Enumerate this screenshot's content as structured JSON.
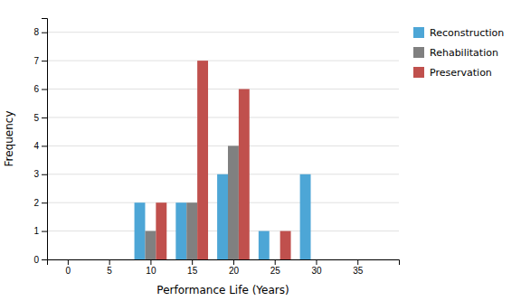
{
  "chart_data": {
    "type": "bar",
    "xlabel": "Performance Life (Years)",
    "ylabel": "Frequency",
    "x": [
      10,
      15,
      20,
      25,
      30
    ],
    "series": [
      {
        "name": "Reconstruction",
        "color": "#4da6d6",
        "values": [
          2,
          2,
          3,
          1,
          3
        ]
      },
      {
        "name": "Rehabilitation",
        "color": "#808080",
        "values": [
          1,
          2,
          4,
          0,
          0
        ]
      },
      {
        "name": "Preservation",
        "color": "#c0504d",
        "values": [
          2,
          7,
          6,
          1,
          0
        ]
      }
    ],
    "xlim": [
      -2.5,
      40
    ],
    "ylim": [
      0,
      8.5
    ],
    "xticks": [
      0,
      5,
      10,
      15,
      20,
      25,
      30,
      35
    ],
    "yticks": [
      0,
      1,
      2,
      3,
      4,
      5,
      6,
      7,
      8
    ],
    "grid": true,
    "legend": "right"
  }
}
